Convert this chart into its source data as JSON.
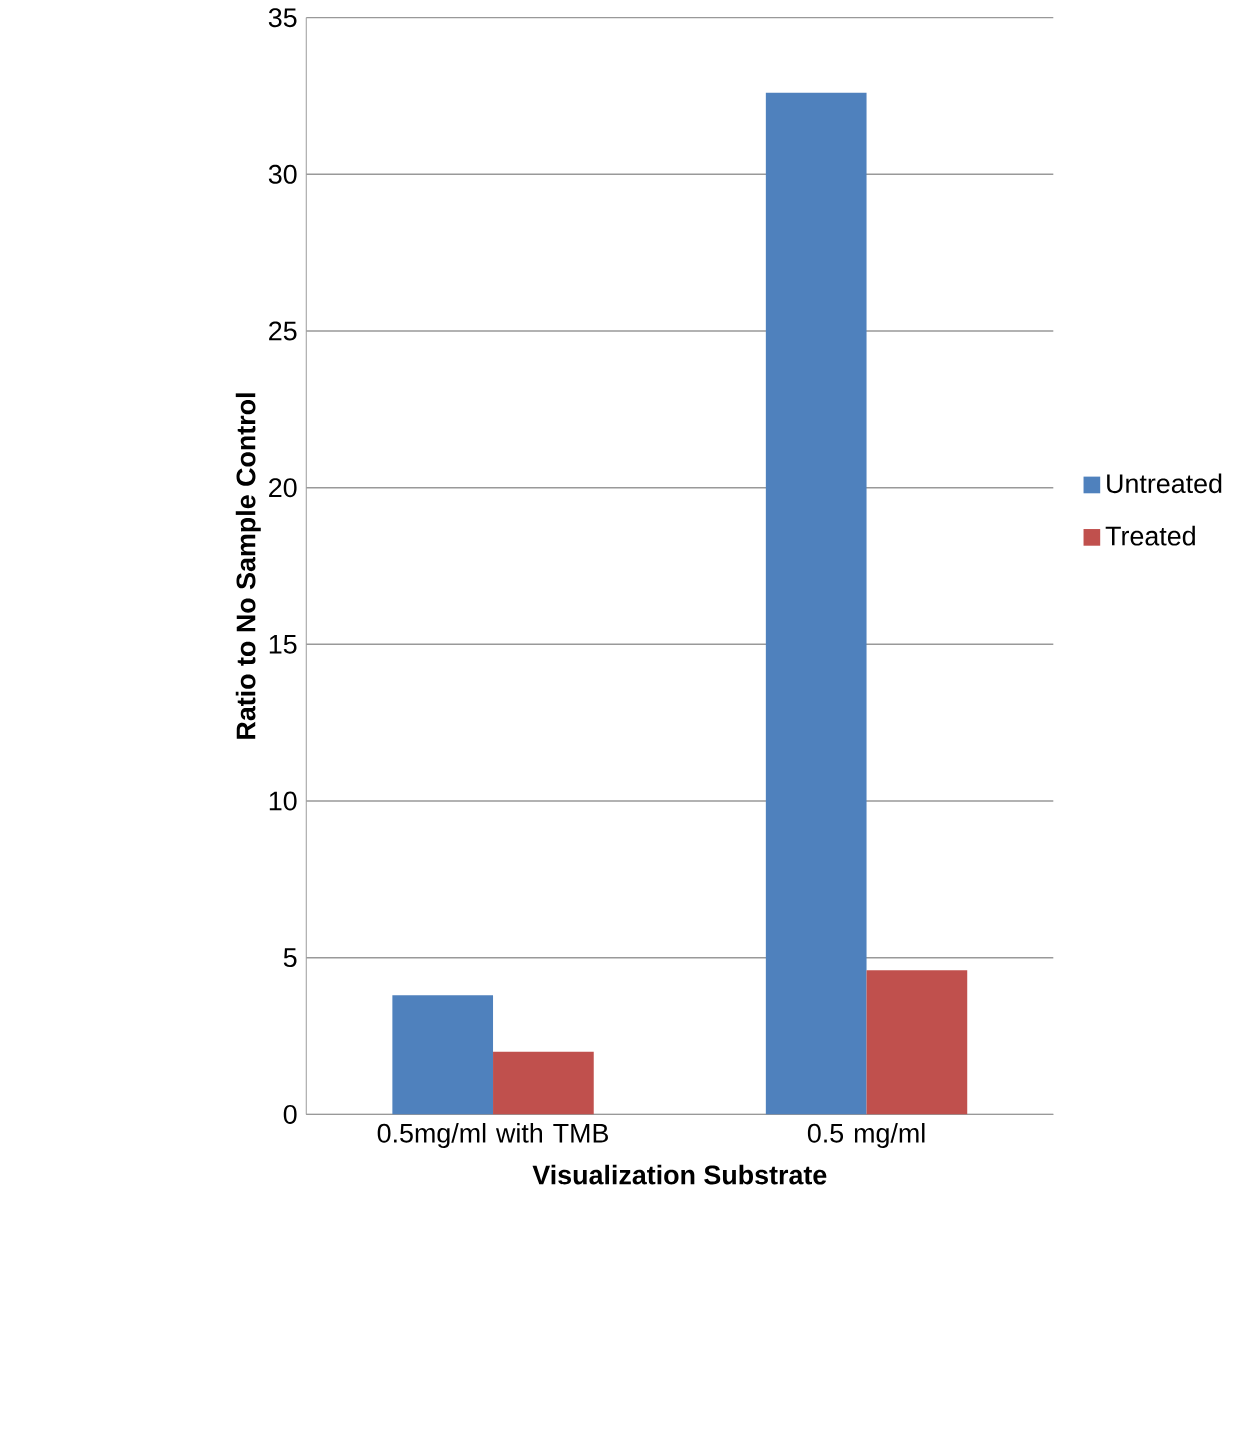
{
  "chart_data": {
    "type": "bar",
    "xlabel": "Visualization Substrate",
    "ylabel": "Ratio to No Sample Control",
    "categories": [
      "0.5mg/ml with TMB",
      "0.5 mg/ml"
    ],
    "series": [
      {
        "name": "Untreated",
        "color": "#4f81bd",
        "values": [
          3.8,
          32.6
        ]
      },
      {
        "name": "Treated",
        "color": "#c0504d",
        "values": [
          2.0,
          4.6
        ]
      }
    ],
    "ylim": [
      0,
      35
    ],
    "yticks": [
      0,
      5,
      10,
      15,
      20,
      25,
      30,
      35
    ],
    "grid": "y",
    "legend": "right"
  }
}
